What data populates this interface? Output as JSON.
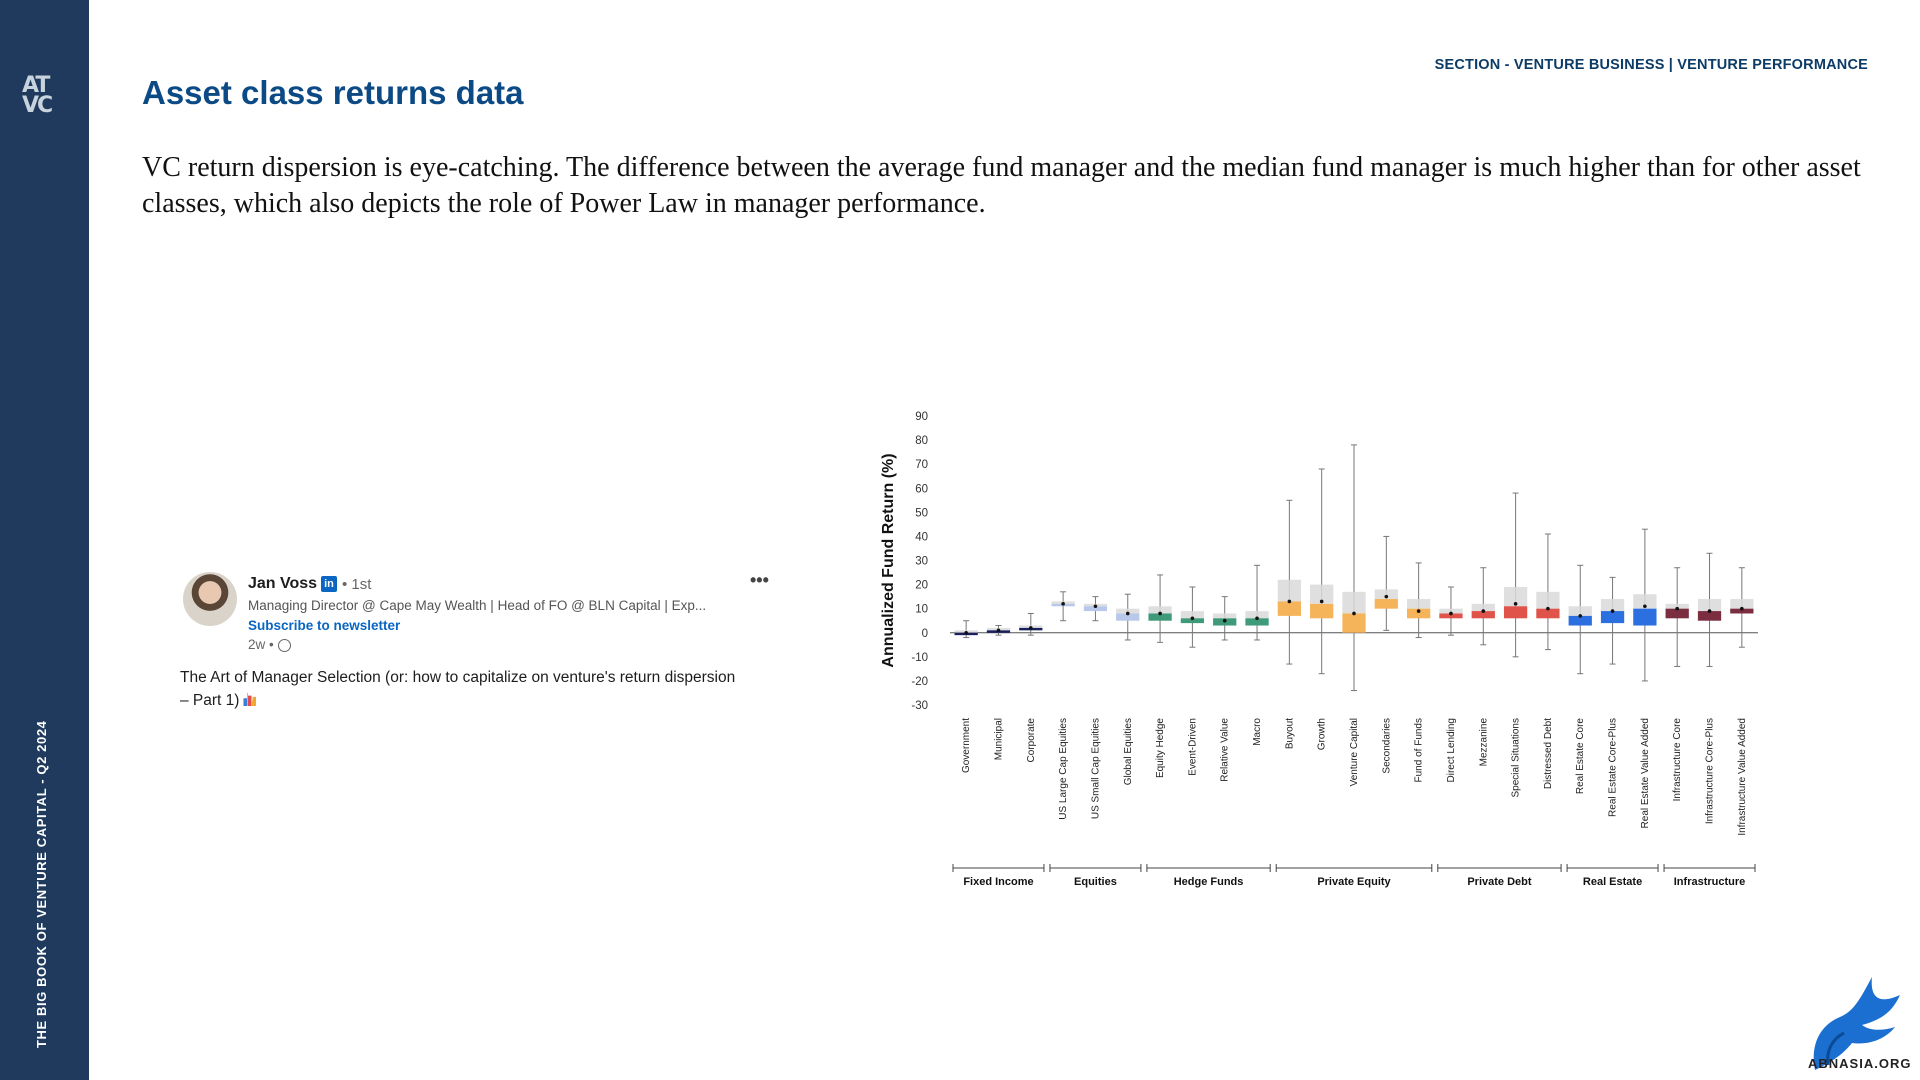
{
  "sidebar": {
    "logo_top": "AT",
    "logo_bottom": "VC",
    "vertical_text": "THE BIG BOOK OF VENTURE CAPITAL - Q2 2024"
  },
  "header": {
    "section": "SECTION - VENTURE BUSINESS | VENTURE PERFORMANCE",
    "title": "Asset class returns data"
  },
  "intro": "VC return dispersion is eye-catching. The difference between the average fund manager and the median fund manager is much higher than for other asset classes, which also depicts the role of Power Law in manager performance.",
  "post": {
    "author": "Jan Voss",
    "network_badge": "in",
    "degree": "• 1st",
    "headline": "Managing Director @ Cape May Wealth | Head of FO @ BLN Capital | Exp...",
    "subscribe": "Subscribe to newsletter",
    "time": "2w •",
    "more": "•••",
    "body": "The Art of Manager Selection (or: how to capitalize on venture's return dispersion – Part 1)"
  },
  "watermark": "ABNASIA.ORG",
  "chart_data": {
    "type": "box",
    "ylabel": "Annualized Fund Return (%)",
    "ylim": [
      -30,
      90
    ],
    "yticks": [
      90,
      80,
      70,
      60,
      50,
      40,
      30,
      20,
      10,
      0,
      -10,
      -20,
      -30
    ],
    "categories": [
      "Government",
      "Municipal",
      "Corporate",
      "US Large Cap Equities",
      "US Small Cap Equities",
      "Global Equities",
      "Equity Hedge",
      "Event-Driven",
      "Relative Value",
      "Macro",
      "Buyout",
      "Growth",
      "Venture Capital",
      "Secondaries",
      "Fund of Funds",
      "Direct Lending",
      "Mezzanine",
      "Special Situations",
      "Distressed Debt",
      "Real Estate Core",
      "Real Estate Core-Plus",
      "Real Estate Value Added",
      "Infrastructure Core",
      "Infrastructure Core-Plus",
      "Infrastructure Value Added"
    ],
    "groups": [
      {
        "label": "Fixed Income",
        "start": 0,
        "end": 2,
        "color": "#1a1f5e"
      },
      {
        "label": "Equities",
        "start": 3,
        "end": 5,
        "color": "#b8c8ea"
      },
      {
        "label": "Hedge Funds",
        "start": 6,
        "end": 9,
        "color": "#3f9a7a"
      },
      {
        "label": "Private Equity",
        "start": 10,
        "end": 14,
        "color": "#f6b45a"
      },
      {
        "label": "Private Debt",
        "start": 15,
        "end": 18,
        "color": "#e0534a"
      },
      {
        "label": "Real Estate",
        "start": 19,
        "end": 21,
        "color": "#2b6fe0"
      },
      {
        "label": "Infrastructure",
        "start": 22,
        "end": 24,
        "color": "#7a2e3f"
      }
    ],
    "boxes": [
      {
        "min": -2,
        "q1": -1,
        "median": 0,
        "q3": 1,
        "max": 5,
        "mean": 0
      },
      {
        "min": -1,
        "q1": 0,
        "median": 1,
        "q3": 2,
        "max": 3,
        "mean": 1
      },
      {
        "min": -1,
        "q1": 1,
        "median": 2,
        "q3": 3,
        "max": 8,
        "mean": 2
      },
      {
        "min": 5,
        "q1": 11,
        "median": 12,
        "q3": 13,
        "max": 17,
        "mean": 12
      },
      {
        "min": 5,
        "q1": 9,
        "median": 11,
        "q3": 12,
        "max": 15,
        "mean": 11
      },
      {
        "min": -3,
        "q1": 5,
        "median": 8,
        "q3": 10,
        "max": 16,
        "mean": 8
      },
      {
        "min": -4,
        "q1": 5,
        "median": 8,
        "q3": 11,
        "max": 24,
        "mean": 8
      },
      {
        "min": -6,
        "q1": 4,
        "median": 6,
        "q3": 9,
        "max": 19,
        "mean": 6
      },
      {
        "min": -3,
        "q1": 3,
        "median": 6,
        "q3": 8,
        "max": 15,
        "mean": 5
      },
      {
        "min": -3,
        "q1": 3,
        "median": 6,
        "q3": 9,
        "max": 28,
        "mean": 6
      },
      {
        "min": -13,
        "q1": 7,
        "median": 13,
        "q3": 22,
        "max": 55,
        "mean": 13
      },
      {
        "min": -17,
        "q1": 6,
        "median": 12,
        "q3": 20,
        "max": 68,
        "mean": 13
      },
      {
        "min": -24,
        "q1": 0,
        "median": 8,
        "q3": 17,
        "max": 78,
        "mean": 8
      },
      {
        "min": 1,
        "q1": 10,
        "median": 14,
        "q3": 18,
        "max": 40,
        "mean": 15
      },
      {
        "min": -2,
        "q1": 6,
        "median": 10,
        "q3": 14,
        "max": 29,
        "mean": 9
      },
      {
        "min": -1,
        "q1": 6,
        "median": 8,
        "q3": 10,
        "max": 19,
        "mean": 8
      },
      {
        "min": -5,
        "q1": 6,
        "median": 9,
        "q3": 12,
        "max": 27,
        "mean": 9
      },
      {
        "min": -10,
        "q1": 6,
        "median": 11,
        "q3": 19,
        "max": 58,
        "mean": 12
      },
      {
        "min": -7,
        "q1": 6,
        "median": 10,
        "q3": 17,
        "max": 41,
        "mean": 10
      },
      {
        "min": -17,
        "q1": 3,
        "median": 7,
        "q3": 11,
        "max": 28,
        "mean": 7
      },
      {
        "min": -13,
        "q1": 4,
        "median": 9,
        "q3": 14,
        "max": 23,
        "mean": 9
      },
      {
        "min": -20,
        "q1": 3,
        "median": 10,
        "q3": 16,
        "max": 43,
        "mean": 11
      },
      {
        "min": -14,
        "q1": 6,
        "median": 10,
        "q3": 12,
        "max": 27,
        "mean": 10
      },
      {
        "min": -14,
        "q1": 5,
        "median": 9,
        "q3": 14,
        "max": 33,
        "mean": 9
      },
      {
        "min": -6,
        "q1": 8,
        "median": 10,
        "q3": 14,
        "max": 27,
        "mean": 10
      }
    ]
  }
}
